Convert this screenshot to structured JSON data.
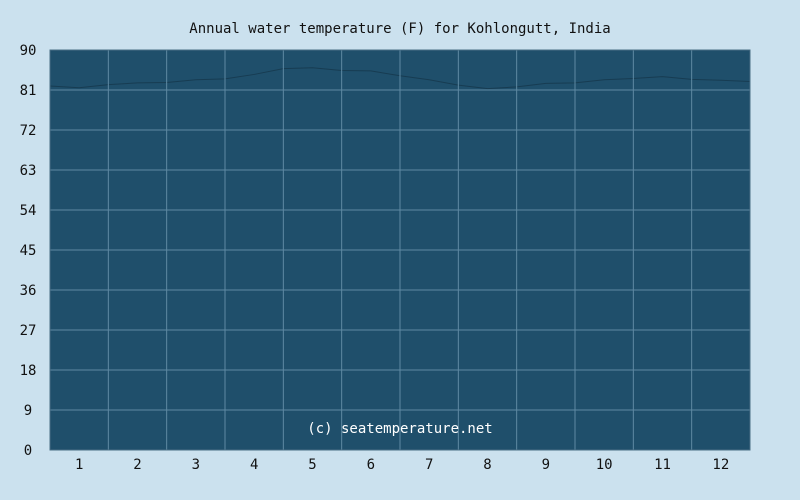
{
  "colors": {
    "background": "#cbe1ee",
    "plot_area": "#1f4f6b",
    "series_fill": "#1f4f6b",
    "grid": "#5f8aa3",
    "axis": "#4a6e84",
    "text": "#111111",
    "watermark": "#ffffff"
  },
  "chart_data": {
    "type": "area",
    "title": "Annual water temperature (F) for Kohlongutt, India",
    "xlabel": "",
    "ylabel": "",
    "ylim": [
      0,
      90
    ],
    "xlim": [
      0.5,
      12.5
    ],
    "grid": true,
    "y_ticks": [
      "0",
      "9",
      "18",
      "27",
      "36",
      "45",
      "54",
      "63",
      "72",
      "81",
      "90"
    ],
    "x_ticks": [
      "1",
      "2",
      "3",
      "4",
      "5",
      "6",
      "7",
      "8",
      "9",
      "10",
      "11",
      "12"
    ],
    "watermark": "(c) seatemperature.net",
    "series": [
      {
        "x": [
          0.5,
          1.0,
          1.5,
          2.0,
          2.5,
          3.0,
          3.5,
          4.0,
          4.5,
          5.0,
          5.5,
          6.0,
          6.5,
          7.0,
          7.5,
          8.0,
          8.5,
          9.0,
          9.5,
          10.0,
          10.5,
          11.0,
          11.5,
          12.0,
          12.5
        ],
        "y": [
          81.9,
          81.5,
          82.2,
          82.6,
          82.7,
          83.3,
          83.5,
          84.5,
          85.8,
          86.0,
          85.4,
          85.3,
          84.2,
          83.3,
          82.1,
          81.3,
          81.7,
          82.5,
          82.6,
          83.3,
          83.6,
          84.0,
          83.4,
          83.2,
          82.9
        ]
      }
    ]
  }
}
